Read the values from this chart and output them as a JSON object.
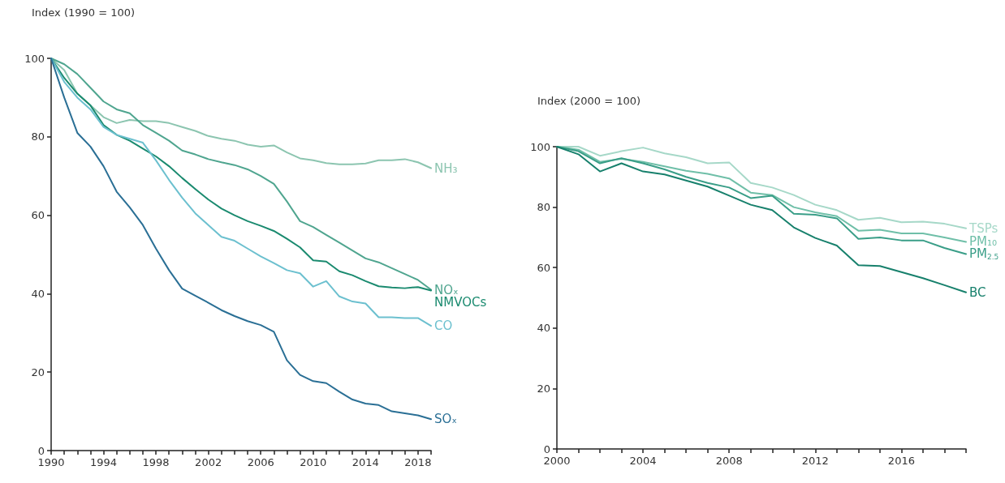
{
  "chart_data": [
    {
      "type": "line",
      "ylabel": "Index (1990 = 100)",
      "x": [
        1990,
        1991,
        1992,
        1993,
        1994,
        1995,
        1996,
        1997,
        1998,
        1999,
        2000,
        2001,
        2002,
        2003,
        2004,
        2005,
        2006,
        2007,
        2008,
        2009,
        2010,
        2011,
        2012,
        2013,
        2014,
        2015,
        2016,
        2017,
        2018,
        2019
      ],
      "xlim": [
        1990,
        2019
      ],
      "xticks": [
        1990,
        {
          "value": 1991,
          "label": null
        },
        {
          "value": 1992,
          "label": null
        },
        {
          "value": 1993,
          "label": null
        },
        1994,
        {
          "value": 1995,
          "label": null
        },
        {
          "value": 1996,
          "label": null
        },
        {
          "value": 1997,
          "label": null
        },
        1998,
        {
          "value": 1999,
          "label": null
        },
        {
          "value": 2000,
          "label": null
        },
        {
          "value": 2001,
          "label": null
        },
        2002,
        {
          "value": 2003,
          "label": null
        },
        {
          "value": 2004,
          "label": null
        },
        {
          "value": 2005,
          "label": null
        },
        2006,
        {
          "value": 2007,
          "label": null
        },
        {
          "value": 2008,
          "label": null
        },
        {
          "value": 2009,
          "label": null
        },
        2010,
        {
          "value": 2011,
          "label": null
        },
        {
          "value": 2012,
          "label": null
        },
        {
          "value": 2013,
          "label": null
        },
        2014,
        {
          "value": 2015,
          "label": null
        },
        {
          "value": 2016,
          "label": null
        },
        {
          "value": 2017,
          "label": null
        },
        2018,
        {
          "value": 2019,
          "label": null
        }
      ],
      "ylim": [
        0,
        100
      ],
      "yticks": [
        0,
        20,
        40,
        60,
        80,
        100
      ],
      "grid": false,
      "legend": false,
      "marker": "none",
      "line_style": "solid",
      "series": [
        {
          "name": "NH₃",
          "color": "#8cc5b0",
          "values": [
            100,
            97,
            91,
            88,
            85,
            83.5,
            84.3,
            84,
            84,
            83.5,
            82.5,
            81.5,
            80.2,
            79.5,
            79,
            78,
            77.5,
            77.8,
            76,
            74.5,
            74,
            73.3,
            73,
            73,
            73.2,
            74,
            74,
            74.3,
            73.5,
            72
          ]
        },
        {
          "name": "NOₓ",
          "color": "#4fa58f",
          "values": [
            100,
            98.5,
            96,
            92.5,
            89,
            87,
            86,
            83,
            81,
            79,
            76.5,
            75.5,
            74.3,
            73.5,
            72.8,
            71.7,
            70,
            68,
            63.5,
            58.5,
            57,
            55,
            53,
            51,
            49,
            48,
            46.5,
            45,
            43.5,
            41
          ]
        },
        {
          "name": "NMVOCs",
          "color": "#1a8a6f",
          "values": [
            100,
            95,
            91,
            88,
            83,
            80.5,
            79,
            77,
            75,
            72.5,
            69.5,
            66.7,
            64,
            61.7,
            60,
            58.5,
            57.3,
            56,
            54,
            51.8,
            48.5,
            48.2,
            45.7,
            44.7,
            43.2,
            41.9,
            41.6,
            41.4,
            41.7,
            40.8
          ]
        },
        {
          "name": "CO",
          "color": "#6cc0cf",
          "values": [
            100,
            94,
            90,
            87,
            82.5,
            80.5,
            79.5,
            78.5,
            74,
            69,
            64.5,
            60.5,
            57.5,
            54.5,
            53.5,
            51.5,
            49.5,
            47.8,
            46,
            45.2,
            41.8,
            43.2,
            39.3,
            38,
            37.5,
            34,
            34,
            33.8,
            33.8,
            31.8
          ]
        },
        {
          "name": "SOₓ",
          "color": "#2a6f95",
          "values": [
            100,
            90,
            81,
            77.5,
            72.5,
            66,
            62,
            57.5,
            51.5,
            46,
            41.3,
            39.5,
            37.7,
            35.8,
            34.3,
            33,
            32,
            30.3,
            23,
            19.3,
            17.7,
            17.2,
            15,
            13,
            12,
            11.6,
            10,
            9.5,
            9,
            8
          ]
        }
      ]
    },
    {
      "type": "line",
      "ylabel": "Index (2000 = 100)",
      "x": [
        2000,
        2001,
        2002,
        2003,
        2004,
        2005,
        2006,
        2007,
        2008,
        2009,
        2010,
        2011,
        2012,
        2013,
        2014,
        2015,
        2016,
        2017,
        2018,
        2019
      ],
      "xlim": [
        2000,
        2019
      ],
      "xticks": [
        2000,
        {
          "value": 2001,
          "label": null
        },
        {
          "value": 2002,
          "label": null
        },
        {
          "value": 2003,
          "label": null
        },
        2004,
        {
          "value": 2005,
          "label": null
        },
        {
          "value": 2006,
          "label": null
        },
        {
          "value": 2007,
          "label": null
        },
        2008,
        {
          "value": 2009,
          "label": null
        },
        {
          "value": 2010,
          "label": null
        },
        {
          "value": 2011,
          "label": null
        },
        2012,
        {
          "value": 2013,
          "label": null
        },
        {
          "value": 2014,
          "label": null
        },
        {
          "value": 2015,
          "label": null
        },
        2016,
        {
          "value": 2017,
          "label": null
        },
        {
          "value": 2018,
          "label": null
        },
        {
          "value": 2019,
          "label": null
        }
      ],
      "ylim": [
        0,
        100
      ],
      "yticks": [
        0,
        20,
        40,
        60,
        80,
        100
      ],
      "grid": false,
      "legend": false,
      "marker": "none",
      "line_style": "solid",
      "series": [
        {
          "name": "TSPs",
          "color": "#a6d8c8",
          "values": [
            100,
            100,
            97,
            98.5,
            99.7,
            97.8,
            96.5,
            94.5,
            94.8,
            88,
            86.5,
            84,
            80.8,
            79,
            75.8,
            76.5,
            75,
            75.2,
            74.5,
            73
          ]
        },
        {
          "name": "PM₁₀",
          "color": "#6fbfa8",
          "values": [
            100,
            99,
            95,
            96,
            95,
            93.5,
            92,
            91,
            89.5,
            84.8,
            84,
            80,
            78.3,
            77,
            72.2,
            72.5,
            71.3,
            71.3,
            70,
            68.5
          ]
        },
        {
          "name": "PM$_{2.5}$",
          "color": "#3a9e88",
          "values": [
            100,
            98.5,
            94.5,
            96.2,
            94.5,
            92.5,
            90,
            88,
            86.5,
            83,
            83.8,
            77.8,
            77.5,
            76.3,
            69.5,
            70,
            69,
            69,
            66.5,
            64.5
          ]
        },
        {
          "name": "BC",
          "color": "#17806c",
          "values": [
            100,
            97.5,
            91.8,
            94.5,
            91.8,
            90.8,
            88.8,
            86.8,
            83.8,
            80.8,
            79,
            73.3,
            69.8,
            67.3,
            60.8,
            60.5,
            58.5,
            56.5,
            54.2,
            51.8
          ]
        }
      ]
    }
  ]
}
